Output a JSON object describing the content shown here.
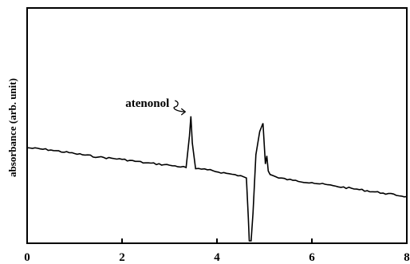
{
  "chart_data": {
    "type": "line",
    "title": "",
    "xlabel": "",
    "ylabel": "absorbance (arb. unit)",
    "xlim": [
      0,
      8
    ],
    "ylim": [
      0,
      1
    ],
    "x_ticks": [
      "0",
      "2",
      "4",
      "6",
      "8"
    ],
    "grid": false,
    "legend": "none",
    "annotations": [
      {
        "text": "atenonol",
        "x": 3.45,
        "y": 0.575
      }
    ],
    "series": [
      {
        "x": [
          0.0,
          0.5,
          1.0,
          1.5,
          2.0,
          2.5,
          3.0,
          3.35,
          3.42,
          3.45,
          3.48,
          3.55,
          3.8,
          4.2,
          4.5,
          4.62,
          4.66,
          4.68,
          4.72,
          4.76,
          4.82,
          4.9,
          4.97,
          5.02,
          5.05,
          5.08,
          5.12,
          5.3,
          5.6,
          6.0,
          6.5,
          7.0,
          7.5,
          8.0
        ],
        "y": [
          0.4,
          0.39,
          0.375,
          0.36,
          0.35,
          0.335,
          0.325,
          0.315,
          0.45,
          0.535,
          0.42,
          0.31,
          0.305,
          0.29,
          0.28,
          0.27,
          0.1,
          0.0,
          0.0,
          0.12,
          0.37,
          0.47,
          0.505,
          0.33,
          0.365,
          0.3,
          0.285,
          0.27,
          0.26,
          0.25,
          0.235,
          0.22,
          0.205,
          0.19
        ]
      }
    ]
  }
}
